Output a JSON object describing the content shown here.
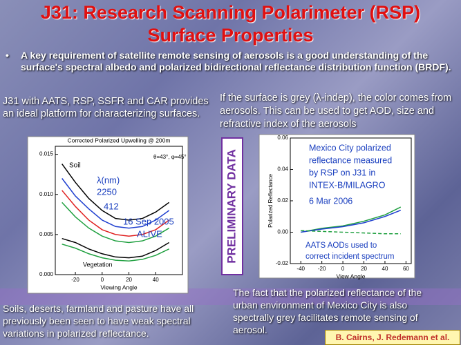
{
  "title": [
    "J31: Research Scanning Polarimeter (RSP)",
    "Surface Properties"
  ],
  "bullet": "A key requirement of satellite remote sensing of aerosols is a good understanding of the surface's spectral albedo and polarized bidirectional reflectance distribution function (BRDF).",
  "left_text": "J31 with AATS, RSP, SSFR and CAR provides an ideal platform for characterizing surfaces.",
  "right_text": "If the surface is grey (λ-indep), the color comes from aerosols. This can be used to get AOD, size and refractive index of the aerosols",
  "stamp": "PRELIMINARY DATA",
  "bottom_left": "Soils, deserts, farmland and pasture have all previously been seen to have weak spectral variations in polarized reflectance.",
  "bottom_right": "The fact that the polarized reflectance of the urban environment of Mexico City is also spectrally grey facilitates remote sensing of aerosol.",
  "credit": "B. Cairns, J. Redemann et al.",
  "chart_data": [
    {
      "type": "line",
      "title": "Corrected Polarized Upwelling @ 200m",
      "xlabel": "Viewing Angle",
      "x": [
        -30,
        -20,
        -10,
        0,
        10,
        20,
        30,
        40,
        50
      ],
      "series": [
        {
          "color": "#000000",
          "values": [
            0.0138,
            0.0115,
            0.0095,
            0.008,
            0.007,
            0.0068,
            0.007,
            0.0078,
            0.009
          ]
        },
        {
          "color": "#2040d0",
          "values": [
            0.012,
            0.0098,
            0.0082,
            0.0068,
            0.006,
            0.0058,
            0.006,
            0.0068,
            0.008
          ]
        },
        {
          "color": "#e02020",
          "values": [
            0.0105,
            0.0085,
            0.0068,
            0.0056,
            0.005,
            0.0048,
            0.005,
            0.0056,
            0.0068
          ]
        },
        {
          "color": "#20a040",
          "values": [
            0.009,
            0.0072,
            0.0058,
            0.0048,
            0.0042,
            0.004,
            0.0042,
            0.0048,
            0.0058
          ]
        },
        {
          "color": "#000000",
          "values": [
            0.0045,
            0.004,
            0.0032,
            0.0026,
            0.0022,
            0.0021,
            0.0023,
            0.003,
            0.004
          ]
        },
        {
          "color": "#20a040",
          "values": [
            0.0038,
            0.0033,
            0.0026,
            0.0021,
            0.0018,
            0.0017,
            0.0019,
            0.0024,
            0.0032
          ]
        }
      ],
      "xlim": [
        -35,
        60
      ],
      "ylim": [
        0,
        0.016
      ],
      "xticks": [
        -20,
        0,
        20,
        40
      ],
      "yticks": [
        {
          "value": 0,
          "label": "0.000"
        },
        0.005,
        {
          "value": 0.01,
          "label": "0.010"
        },
        0.015
      ],
      "annotations": [
        "Soil",
        "Vegetation",
        "θ=43°, φ=45°",
        "λ(nm)",
        "2250",
        "412",
        "16 Sep 2005",
        "ALIVE"
      ]
    },
    {
      "type": "line",
      "ylabel": "Polarized Reflectance",
      "xlabel": "View Angle",
      "x": [
        -40,
        -20,
        0,
        20,
        40,
        55
      ],
      "series": [
        {
          "color": "#20a040",
          "values": [
            0,
            0.0025,
            0.004,
            0.007,
            0.011,
            0.016
          ]
        },
        {
          "color": "#2040d0",
          "values": [
            0,
            0.002,
            0.0035,
            0.006,
            0.01,
            0.014
          ]
        },
        {
          "color": "#20a040",
          "style": "dashed",
          "values": [
            0.001,
            0.0005,
            0,
            -0.0005,
            -0.001,
            -0.001
          ]
        }
      ],
      "xlim": [
        -50,
        65
      ],
      "ylim": [
        -0.02,
        0.06
      ],
      "xticks": [
        -40,
        -20,
        0,
        20,
        40,
        60
      ],
      "yticks": [
        -0.02,
        {
          "value": 0,
          "label": "0.00"
        },
        0.02,
        0.04,
        0.06
      ],
      "annotations": [
        "Mexico City polarized",
        "reflectance measured",
        "by RSP on J31 in",
        "INTEX-B/MILAGRO",
        "6 Mar 2006",
        "AATS AODs used to",
        "correct incident spectrum"
      ]
    }
  ]
}
